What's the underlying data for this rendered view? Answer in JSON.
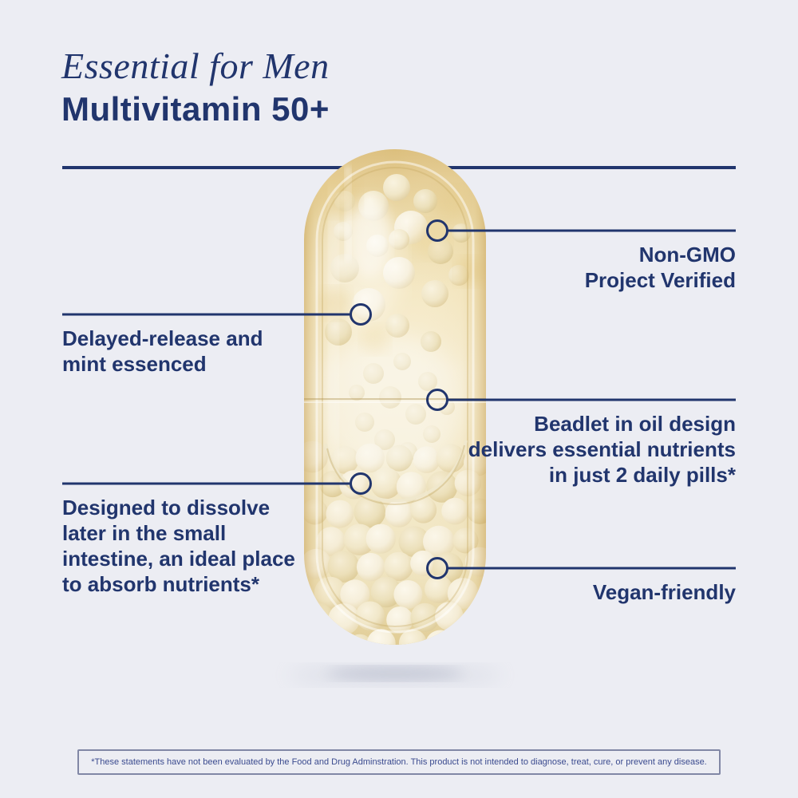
{
  "page": {
    "background_color": "#ecedf3",
    "accent_color": "#21356d",
    "capsule_gold_color": "#f2e4bb",
    "beadlet_cream_color": "#f6efdb"
  },
  "header": {
    "brand_line": "Essential for Men",
    "product_line": "Multivitamin 50+"
  },
  "callouts": [
    {
      "id": "non-gmo",
      "side": "right",
      "text": "Non-GMO\nProject Verified"
    },
    {
      "id": "delayed-release",
      "side": "left",
      "text": "Delayed-release and\nmint essenced"
    },
    {
      "id": "beadlet-in-oil",
      "side": "right",
      "text": "Beadlet in oil design\ndelivers essential nutrients\nin just 2 daily pills*"
    },
    {
      "id": "dissolve-later",
      "side": "left",
      "text": "Designed to dissolve\nlater in the small\nintestine, an ideal place\nto absorb nutrients*"
    },
    {
      "id": "vegan-friendly",
      "side": "right",
      "text": "Vegan-friendly"
    }
  ],
  "footer": {
    "disclaimer": "*These statements have not been evaluated by the Food and Drug Adminstration. This product is not intended to diagnose, treat, cure, or prevent any disease."
  }
}
